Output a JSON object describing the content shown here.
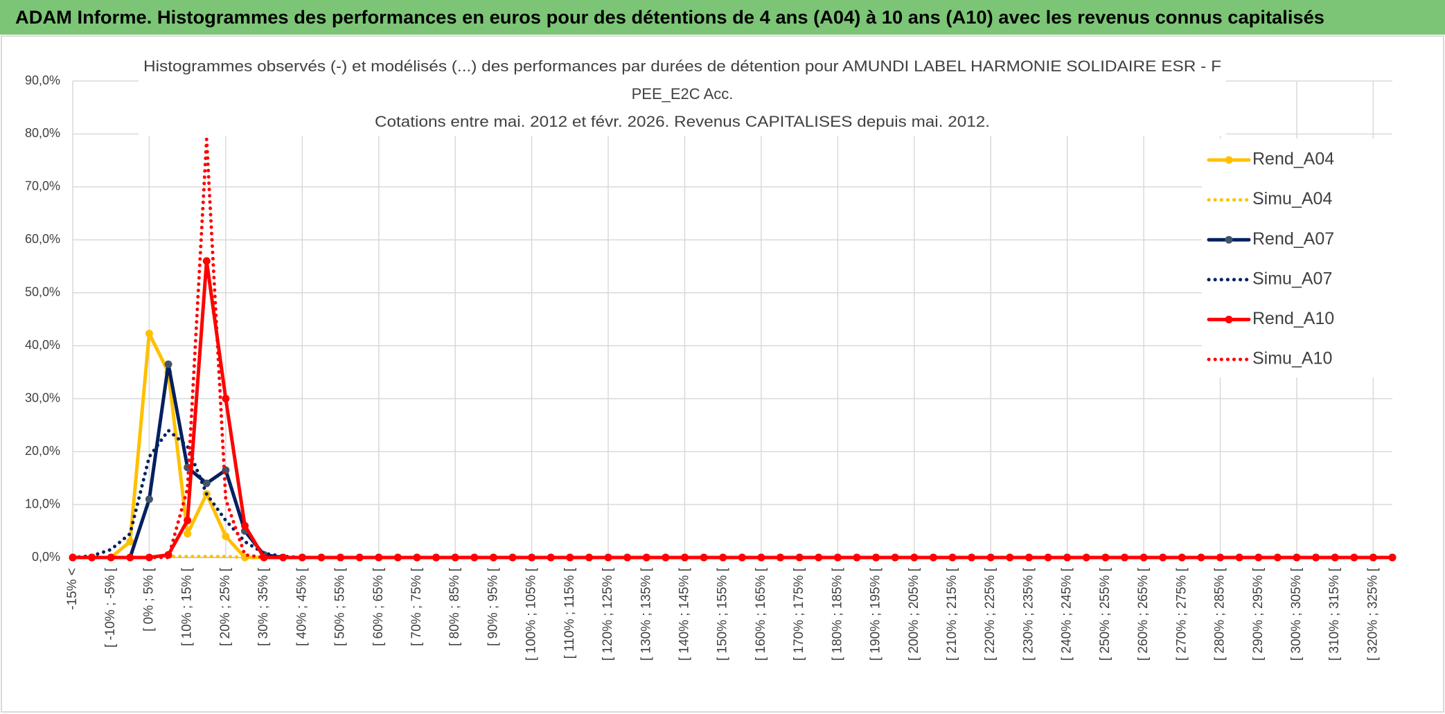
{
  "header": {
    "title": "ADAM Informe. Histogrammes des performances en euros pour des détentions de 4 ans (A04) à 10 ans (A10) avec les revenus connus capitalisés"
  },
  "chart_data": {
    "type": "line",
    "title": [
      "Histogrammes observés (-) et modélisés (...) des performances par durées de détention pour AMUNDI LABEL HARMONIE SOLIDAIRE ESR - F",
      "PEE_E2C Acc.",
      "Cotations entre mai. 2012 et févr. 2026. Revenus CAPITALISES depuis mai. 2012."
    ],
    "categories": [
      "-15% <",
      null,
      "[ -10% ; -5% [",
      null,
      "[ 0% ; 5% [",
      null,
      "[ 10% ; 15% [",
      null,
      "[ 20% ; 25% [",
      null,
      "[ 30% ; 35% [",
      null,
      "[ 40% ; 45% [",
      null,
      "[ 50% ; 55% [",
      null,
      "[ 60% ; 65% [",
      null,
      "[ 70% ; 75% [",
      null,
      "[ 80% ; 85% [",
      null,
      "[ 90% ; 95% [",
      null,
      "[ 100% ; 105% [",
      null,
      "[ 110% ; 115% [",
      null,
      "[ 120% ; 125% [",
      null,
      "[ 130% ; 135% [",
      null,
      "[ 140% ; 145% [",
      null,
      "[ 150% ; 155% [",
      null,
      "[ 160% ; 165% [",
      null,
      "[ 170% ; 175% [",
      null,
      "[ 180% ; 185% [",
      null,
      "[ 190% ; 195% [",
      null,
      "[ 200% ; 205% [",
      null,
      "[ 210% ; 215% [",
      null,
      "[ 220% ; 225% [",
      null,
      "[ 230% ; 235% [",
      null,
      "[ 240% ; 245% [",
      null,
      "[ 250% ; 255% [",
      null,
      "[ 260% ; 265% [",
      null,
      "[ 270% ; 275% [",
      null,
      "[ 280% ; 285% [",
      null,
      "[ 290% ; 295% [",
      null,
      "[ 300% ; 305% [",
      null,
      "[ 310% ; 315% [",
      null,
      "[ 320% ; 325% [",
      null
    ],
    "series": [
      {
        "name": "Rend_A04",
        "color": "#ffc000",
        "style": "solid",
        "markers": true,
        "values": [
          0,
          0,
          0,
          3,
          42.3,
          35,
          4.5,
          12,
          4,
          0,
          0,
          0,
          0,
          0,
          0,
          0,
          0,
          0,
          0,
          0,
          0,
          0,
          0,
          0,
          0,
          0,
          0,
          0,
          0,
          0,
          0,
          0,
          0,
          0,
          0,
          0,
          0,
          0,
          0,
          0,
          0,
          0,
          0,
          0,
          0,
          0,
          0,
          0,
          0,
          0,
          0,
          0,
          0,
          0,
          0,
          0,
          0,
          0,
          0,
          0,
          0,
          0,
          0,
          0,
          0,
          0,
          0,
          0,
          0,
          0
        ]
      },
      {
        "name": "Simu_A04",
        "color": "#ffc000",
        "style": "dotted",
        "markers": false,
        "values": [
          0,
          0,
          0,
          0,
          0,
          0.2,
          0.2,
          0.2,
          0.2,
          0,
          0,
          0,
          0,
          0,
          0,
          0,
          0,
          0,
          0,
          0,
          0,
          0,
          0,
          0,
          0,
          0,
          0,
          0,
          0,
          0,
          0,
          0,
          0,
          0,
          0,
          0,
          0,
          0,
          0,
          0,
          0,
          0,
          0,
          0,
          0,
          0,
          0,
          0,
          0,
          0,
          0,
          0,
          0,
          0,
          0,
          0,
          0,
          0,
          0,
          0,
          0,
          0,
          0,
          0,
          0,
          0,
          0,
          0,
          0,
          0
        ]
      },
      {
        "name": "Rend_A07",
        "color": "#002060",
        "style": "solid",
        "markers": true,
        "values": [
          0,
          0,
          0,
          0,
          11,
          36.5,
          17,
          14,
          16.5,
          5,
          0.5,
          0,
          0,
          0,
          0,
          0,
          0,
          0,
          0,
          0,
          0,
          0,
          0,
          0,
          0,
          0,
          0,
          0,
          0,
          0,
          0,
          0,
          0,
          0,
          0,
          0,
          0,
          0,
          0,
          0,
          0,
          0,
          0,
          0,
          0,
          0,
          0,
          0,
          0,
          0,
          0,
          0,
          0,
          0,
          0,
          0,
          0,
          0,
          0,
          0,
          0,
          0,
          0,
          0,
          0,
          0,
          0,
          0,
          0,
          0
        ]
      },
      {
        "name": "Simu_A07",
        "color": "#002060",
        "style": "dotted",
        "markers": false,
        "values": [
          0,
          0.3,
          1.5,
          4.5,
          19,
          24,
          21,
          12,
          7,
          3,
          0.8,
          0.2,
          0,
          0,
          0,
          0,
          0,
          0,
          0,
          0,
          0,
          0,
          0,
          0,
          0,
          0,
          0,
          0,
          0,
          0,
          0,
          0,
          0,
          0,
          0,
          0,
          0,
          0,
          0,
          0,
          0,
          0,
          0,
          0,
          0,
          0,
          0,
          0,
          0,
          0,
          0,
          0,
          0,
          0,
          0,
          0,
          0,
          0,
          0,
          0,
          0,
          0,
          0,
          0,
          0,
          0,
          0,
          0,
          0,
          0
        ]
      },
      {
        "name": "Rend_A10",
        "color": "#ff0000",
        "style": "solid",
        "markers": true,
        "values": [
          0,
          0,
          0,
          0,
          0,
          0.5,
          7,
          56,
          30,
          6,
          0,
          0,
          0,
          0,
          0,
          0,
          0,
          0,
          0,
          0,
          0,
          0,
          0,
          0,
          0,
          0,
          0,
          0,
          0,
          0,
          0,
          0,
          0,
          0,
          0,
          0,
          0,
          0,
          0,
          0,
          0,
          0,
          0,
          0,
          0,
          0,
          0,
          0,
          0,
          0,
          0,
          0,
          0,
          0,
          0,
          0,
          0,
          0,
          0,
          0,
          0,
          0,
          0,
          0,
          0,
          0,
          0,
          0,
          0,
          0
        ]
      },
      {
        "name": "Simu_A10",
        "color": "#ff0000",
        "style": "dotted",
        "markers": false,
        "values": [
          0,
          0,
          0,
          0,
          0,
          0,
          13,
          79,
          11,
          0.5,
          0,
          0,
          0,
          0,
          0,
          0,
          0,
          0,
          0,
          0,
          0,
          0,
          0,
          0,
          0,
          0,
          0,
          0,
          0,
          0,
          0,
          0,
          0,
          0,
          0,
          0,
          0,
          0,
          0,
          0,
          0,
          0,
          0,
          0,
          0,
          0,
          0,
          0,
          0,
          0,
          0,
          0,
          0,
          0,
          0,
          0,
          0,
          0,
          0,
          0,
          0,
          0,
          0,
          0,
          0,
          0,
          0,
          0,
          0,
          0
        ]
      }
    ],
    "ylim": [
      0,
      90
    ],
    "yticks": [
      {
        "value": 0,
        "label": "0,0%"
      },
      {
        "value": 10,
        "label": "10,0%"
      },
      {
        "value": 20,
        "label": "20,0%"
      },
      {
        "value": 30,
        "label": "30,0%"
      },
      {
        "value": 40,
        "label": "40,0%"
      },
      {
        "value": 50,
        "label": "50,0%"
      },
      {
        "value": 60,
        "label": "60,0%"
      },
      {
        "value": 70,
        "label": "70,0%"
      },
      {
        "value": 80,
        "label": "80,0%"
      },
      {
        "value": 90,
        "label": "90,0%"
      }
    ],
    "grid": true,
    "legend": "right"
  }
}
